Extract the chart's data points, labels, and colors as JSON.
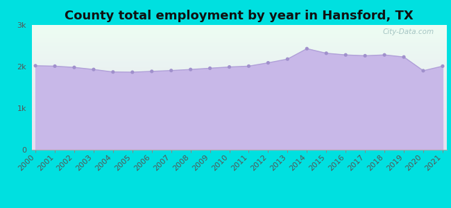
{
  "title": "County total employment by year in Hansford, TX",
  "years": [
    2000,
    2001,
    2002,
    2003,
    2004,
    2005,
    2006,
    2007,
    2008,
    2009,
    2010,
    2011,
    2012,
    2013,
    2014,
    2015,
    2016,
    2017,
    2018,
    2019,
    2020,
    2021
  ],
  "values": [
    2020,
    2010,
    1980,
    1930,
    1870,
    1865,
    1885,
    1905,
    1930,
    1960,
    1990,
    2010,
    2090,
    2180,
    2430,
    2320,
    2280,
    2260,
    2280,
    2230,
    1900,
    2010
  ],
  "bg_color": "#00e0e0",
  "plot_bg_top": "#edfdf3",
  "plot_bg_bottom": "#e6dff0",
  "fill_color": "#c8b8e8",
  "line_color": "#b0a0d8",
  "dot_color": "#a090cc",
  "title_color": "#111111",
  "tick_color": "#555555",
  "ylim": [
    0,
    3000
  ],
  "yticks": [
    0,
    1000,
    2000,
    3000
  ],
  "ytick_labels": [
    "0",
    "1k",
    "2k",
    "3k"
  ],
  "title_fontsize": 13,
  "tick_fontsize": 8
}
